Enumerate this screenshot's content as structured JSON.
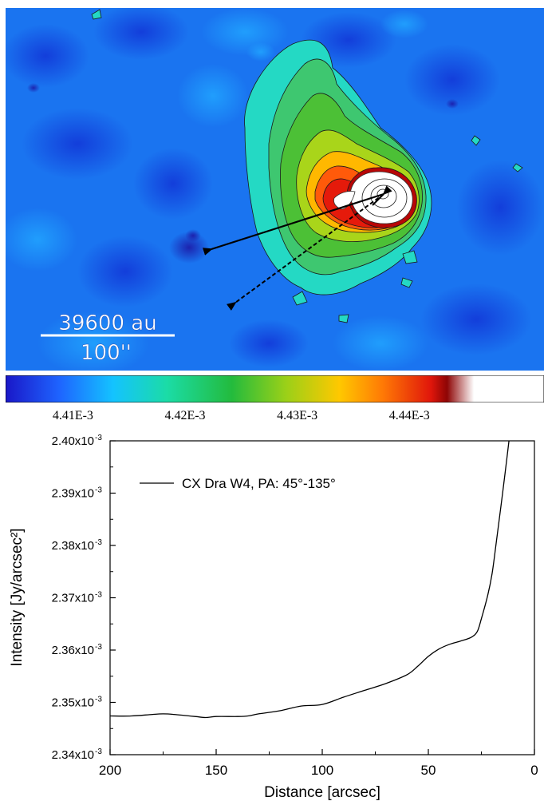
{
  "map": {
    "scale_bar_top": "39600 au",
    "scale_bar_bottom": "100''"
  },
  "colorbar": {
    "tick_labels": [
      "4.41E-3",
      "4.42E-3",
      "4.43E-3",
      "4.44E-3"
    ],
    "tick_values": [
      0.00441,
      0.00442,
      0.00443,
      0.00444
    ],
    "range": [
      0.004404,
      0.004452
    ],
    "colors": [
      "#1a17c8",
      "#1e64ff",
      "#14c3ff",
      "#1bdca6",
      "#23bb3d",
      "#9ad018",
      "#ffc800",
      "#ff7a05",
      "#e0160b",
      "#8e0505",
      "#ffffff"
    ]
  },
  "chart_data": {
    "type": "line",
    "title": "",
    "xlabel": "Distance [arcsec]",
    "ylabel": "Intensity [Jy/arcsec²]",
    "xlim": [
      200,
      0
    ],
    "ylim": [
      0.00234,
      0.0024
    ],
    "x_ticks": [
      200,
      150,
      100,
      50,
      0
    ],
    "y_ticks": [
      0.00234,
      0.00235,
      0.00236,
      0.00237,
      0.00238,
      0.00239,
      0.0024
    ],
    "y_tick_mantissas": [
      "2.34x10",
      "2.35x10",
      "2.36x10",
      "2.37x10",
      "2.38x10",
      "2.39x10",
      "2.40x10"
    ],
    "y_tick_exponent": "-3",
    "legend_position": "top-left",
    "series": [
      {
        "name": "CX Dra W4, PA: 45°-135°",
        "x": [
          200,
          190,
          180,
          175,
          170,
          160,
          155,
          150,
          140,
          135,
          130,
          120,
          110,
          100,
          90,
          80,
          70,
          60,
          55,
          50,
          45,
          40,
          35,
          30,
          27,
          25,
          22,
          20,
          18,
          15,
          12
        ],
        "y": [
          0.0023474,
          0.0023474,
          0.0023477,
          0.0023478,
          0.0023477,
          0.0023473,
          0.0023471,
          0.0023473,
          0.0023473,
          0.0023474,
          0.0023478,
          0.0023484,
          0.0023493,
          0.0023496,
          0.002351,
          0.0023523,
          0.0023536,
          0.0023553,
          0.0023569,
          0.0023588,
          0.0023602,
          0.0023611,
          0.0023617,
          0.0023624,
          0.0023635,
          0.002366,
          0.0023705,
          0.0023745,
          0.0023805,
          0.00239,
          0.0024
        ]
      }
    ]
  }
}
